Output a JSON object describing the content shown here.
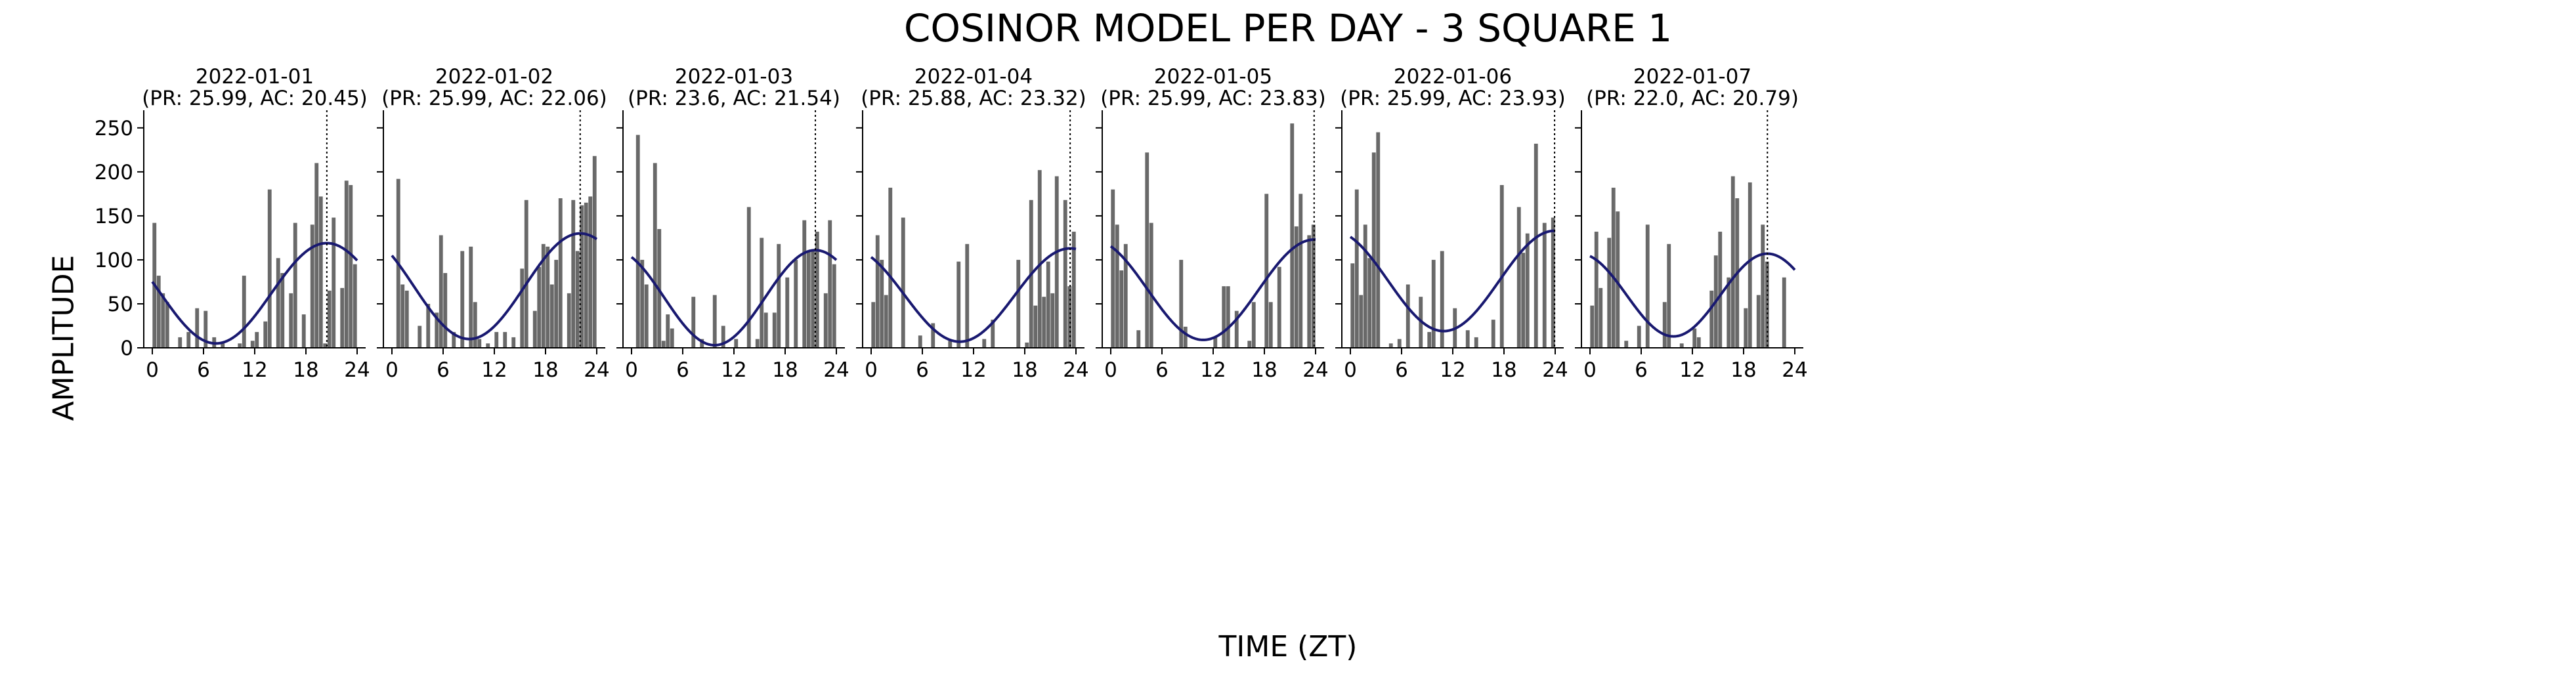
{
  "figure": {
    "title": "COSINOR MODEL PER DAY - 3 SQUARE 1",
    "xlabel": "TIME (ZT)",
    "ylabel": "AMPLITUDE"
  },
  "colors": {
    "bar": "#696969",
    "fit": "#191970",
    "acrophase_line": "#000000",
    "axis": "#000000"
  },
  "chart_data": {
    "type": "bar",
    "shared_xticks": [
      0,
      6,
      12,
      18,
      24
    ],
    "shared_yticks": [
      0,
      50,
      100,
      150,
      200,
      250
    ],
    "xlim": [
      -1,
      25
    ],
    "ylim": [
      0,
      270
    ],
    "panels": [
      {
        "date": "2022-01-01",
        "subtitle": "(PR: 25.99, AC: 20.45)",
        "period": 25.99,
        "acrophase": 20.45,
        "mesor": 62,
        "amplitude": 57,
        "hours": [
          0,
          0.5,
          1,
          1.5,
          2,
          2.5,
          3,
          3.5,
          4,
          4.5,
          5,
          5.5,
          6,
          6.5,
          7,
          7.5,
          8,
          8.5,
          9,
          9.5,
          10,
          10.5,
          11,
          11.5,
          12,
          12.5,
          13,
          13.5,
          14,
          14.5,
          15,
          15.5,
          16,
          16.5,
          17,
          17.5,
          18,
          18.5,
          19,
          19.5,
          20,
          20.5,
          21,
          21.5,
          22,
          22.5,
          23,
          23.5
        ],
        "values": [
          142,
          82,
          62,
          52,
          0,
          0,
          12,
          0,
          18,
          0,
          45,
          0,
          42,
          0,
          12,
          0,
          5,
          0,
          0,
          0,
          5,
          82,
          0,
          8,
          18,
          0,
          30,
          180,
          0,
          102,
          85,
          0,
          62,
          142,
          0,
          38,
          0,
          140,
          210,
          172,
          5,
          65,
          148,
          0,
          68,
          190,
          185,
          95
        ]
      },
      {
        "date": "2022-01-02",
        "subtitle": "(PR: 25.99, AC: 22.06)",
        "period": 25.99,
        "acrophase": 22.06,
        "mesor": 70,
        "amplitude": 60,
        "hours": [
          0,
          0.5,
          1,
          1.5,
          2,
          2.5,
          3,
          3.5,
          4,
          4.5,
          5,
          5.5,
          6,
          6.5,
          7,
          7.5,
          8,
          8.5,
          9,
          9.5,
          10,
          10.5,
          11,
          11.5,
          12,
          12.5,
          13,
          13.5,
          14,
          14.5,
          15,
          15.5,
          16,
          16.5,
          17,
          17.5,
          18,
          18.5,
          19,
          19.5,
          20,
          20.5,
          21,
          21.5,
          22,
          22.5,
          23,
          23.5
        ],
        "values": [
          0,
          192,
          72,
          65,
          0,
          0,
          25,
          0,
          50,
          0,
          40,
          128,
          85,
          0,
          18,
          0,
          110,
          0,
          115,
          52,
          10,
          0,
          5,
          0,
          18,
          0,
          18,
          0,
          12,
          0,
          90,
          168,
          0,
          42,
          92,
          118,
          115,
          72,
          100,
          170,
          0,
          62,
          168,
          110,
          162,
          165,
          172,
          218
        ]
      },
      {
        "date": "2022-01-03",
        "subtitle": "(PR: 23.6, AC: 21.54)",
        "period": 23.6,
        "acrophase": 21.54,
        "mesor": 57,
        "amplitude": 54,
        "hours": [
          0,
          0.5,
          1,
          1.5,
          2,
          2.5,
          3,
          3.5,
          4,
          4.5,
          5,
          5.5,
          6,
          6.5,
          7,
          7.5,
          8,
          8.5,
          9,
          9.5,
          10,
          10.5,
          11,
          11.5,
          12,
          12.5,
          13,
          13.5,
          14,
          14.5,
          15,
          15.5,
          16,
          16.5,
          17,
          17.5,
          18,
          18.5,
          19,
          19.5,
          20,
          20.5,
          21,
          21.5,
          22,
          22.5,
          23,
          23.5
        ],
        "values": [
          0,
          242,
          100,
          72,
          0,
          210,
          135,
          8,
          38,
          22,
          0,
          0,
          0,
          0,
          58,
          0,
          10,
          0,
          0,
          60,
          0,
          25,
          0,
          0,
          10,
          0,
          0,
          160,
          0,
          10,
          125,
          40,
          0,
          40,
          118,
          0,
          80,
          0,
          100,
          0,
          145,
          110,
          110,
          132,
          0,
          62,
          145,
          95
        ]
      },
      {
        "date": "2022-01-04",
        "subtitle": "(PR: 25.88, AC: 23.32)",
        "period": 25.88,
        "acrophase": 23.32,
        "mesor": 60,
        "amplitude": 53,
        "hours": [
          0,
          0.5,
          1,
          1.5,
          2,
          2.5,
          3,
          3.5,
          4,
          4.5,
          5,
          5.5,
          6,
          6.5,
          7,
          7.5,
          8,
          8.5,
          9,
          9.5,
          10,
          10.5,
          11,
          11.5,
          12,
          12.5,
          13,
          13.5,
          14,
          14.5,
          15,
          15.5,
          16,
          16.5,
          17,
          17.5,
          18,
          18.5,
          19,
          19.5,
          20,
          20.5,
          21,
          21.5,
          22,
          22.5,
          23,
          23.5
        ],
        "values": [
          52,
          128,
          100,
          60,
          182,
          0,
          0,
          148,
          0,
          0,
          0,
          14,
          0,
          0,
          28,
          0,
          0,
          0,
          8,
          0,
          98,
          0,
          118,
          0,
          0,
          0,
          10,
          0,
          32,
          0,
          0,
          0,
          0,
          0,
          100,
          0,
          6,
          168,
          48,
          202,
          58,
          98,
          62,
          195,
          0,
          168,
          70,
          132
        ]
      },
      {
        "date": "2022-01-05",
        "subtitle": "(PR: 25.99, AC: 23.83)",
        "period": 25.99,
        "acrophase": 23.83,
        "mesor": 66,
        "amplitude": 57,
        "hours": [
          0,
          0.5,
          1,
          1.5,
          2,
          2.5,
          3,
          3.5,
          4,
          4.5,
          5,
          5.5,
          6,
          6.5,
          7,
          7.5,
          8,
          8.5,
          9,
          9.5,
          10,
          10.5,
          11,
          11.5,
          12,
          12.5,
          13,
          13.5,
          14,
          14.5,
          15,
          15.5,
          16,
          16.5,
          17,
          17.5,
          18,
          18.5,
          19,
          19.5,
          20,
          20.5,
          21,
          21.5,
          22,
          22.5,
          23,
          23.5
        ],
        "values": [
          180,
          140,
          88,
          118,
          0,
          0,
          20,
          0,
          222,
          142,
          0,
          0,
          0,
          0,
          0,
          0,
          100,
          24,
          0,
          0,
          0,
          0,
          0,
          0,
          12,
          0,
          70,
          70,
          0,
          42,
          0,
          0,
          8,
          52,
          0,
          0,
          175,
          52,
          0,
          92,
          0,
          0,
          255,
          138,
          175,
          0,
          128,
          140
        ]
      },
      {
        "date": "2022-01-06",
        "subtitle": "(PR: 25.99, AC: 23.93)",
        "period": 25.99,
        "acrophase": 23.93,
        "mesor": 76,
        "amplitude": 57,
        "hours": [
          0,
          0.5,
          1,
          1.5,
          2,
          2.5,
          3,
          3.5,
          4,
          4.5,
          5,
          5.5,
          6,
          6.5,
          7,
          7.5,
          8,
          8.5,
          9,
          9.5,
          10,
          10.5,
          11,
          11.5,
          12,
          12.5,
          13,
          13.5,
          14,
          14.5,
          15,
          15.5,
          16,
          16.5,
          17,
          17.5,
          18,
          18.5,
          19,
          19.5,
          20,
          20.5,
          21,
          21.5,
          22,
          22.5,
          23,
          23.5
        ],
        "values": [
          96,
          180,
          60,
          140,
          102,
          222,
          245,
          0,
          0,
          5,
          0,
          10,
          0,
          72,
          0,
          0,
          58,
          0,
          18,
          100,
          0,
          110,
          0,
          0,
          45,
          0,
          0,
          20,
          0,
          12,
          0,
          0,
          0,
          32,
          0,
          185,
          0,
          0,
          0,
          160,
          108,
          130,
          0,
          232,
          0,
          142,
          0,
          148
        ]
      },
      {
        "date": "2022-01-07",
        "subtitle": "(PR: 22.0, AC: 20.79)",
        "period": 22.0,
        "acrophase": 20.79,
        "mesor": 60,
        "amplitude": 47,
        "hours": [
          0,
          0.5,
          1,
          1.5,
          2,
          2.5,
          3,
          3.5,
          4,
          4.5,
          5,
          5.5,
          6,
          6.5,
          7,
          7.5,
          8,
          8.5,
          9,
          9.5,
          10,
          10.5,
          11,
          11.5,
          12,
          12.5,
          13,
          13.5,
          14,
          14.5,
          15,
          15.5,
          16,
          16.5,
          17,
          17.5,
          18,
          18.5,
          19,
          19.5,
          20,
          20.5,
          21,
          21.5,
          22,
          22.5,
          23,
          23.5
        ],
        "values": [
          48,
          132,
          68,
          0,
          125,
          182,
          155,
          0,
          8,
          0,
          0,
          25,
          0,
          140,
          0,
          0,
          0,
          52,
          118,
          0,
          0,
          5,
          0,
          0,
          22,
          12,
          0,
          0,
          65,
          105,
          132,
          0,
          80,
          195,
          170,
          0,
          45,
          188,
          0,
          60,
          140,
          98,
          0,
          0,
          0,
          80,
          0,
          0
        ]
      }
    ]
  }
}
